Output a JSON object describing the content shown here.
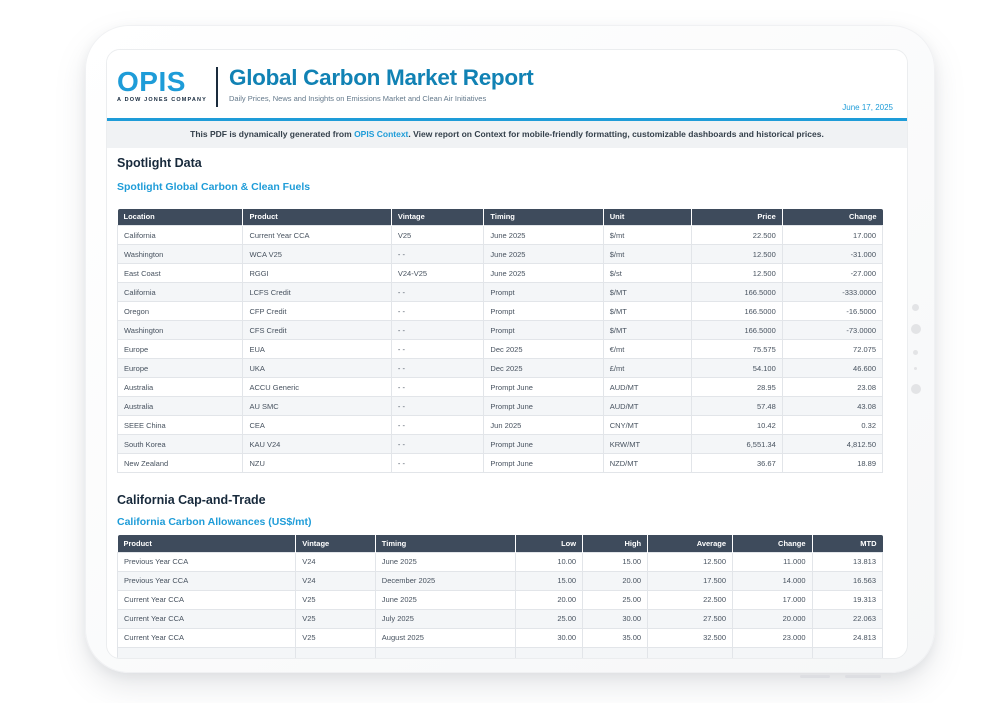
{
  "header": {
    "logo": {
      "name": "OPIS",
      "tagline": "A DOW JONES COMPANY"
    },
    "title": "Global Carbon Market Report",
    "subtitle": "Daily Prices, News and Insights on Emissions Market and Clean Air Initiatives",
    "date": "June 17, 2025"
  },
  "banner": {
    "text_before": "This PDF is dynamically generated from ",
    "link_text": "OPIS Context",
    "text_after": ". View report on Context for mobile-friendly formatting, customizable dashboards and historical prices."
  },
  "spotlight": {
    "heading": "Spotlight Data",
    "subheading": "Spotlight Global Carbon & Clean Fuels",
    "table": {
      "columns": [
        "Location",
        "Product",
        "Vintage",
        "Timing",
        "Unit",
        "Price",
        "Change"
      ],
      "align": [
        "left",
        "left",
        "left",
        "left",
        "left",
        "right",
        "right"
      ],
      "col_widths": [
        "16.4%",
        "19.4%",
        "12.1%",
        "15.6%",
        "11.6%",
        "11.8%",
        "13.1%"
      ],
      "rows": [
        [
          "California",
          "Current Year CCA",
          "V25",
          "June 2025",
          "$/mt",
          "22.500",
          "17.000"
        ],
        [
          "Washington",
          "WCA V25",
          "- -",
          "June 2025",
          "$/mt",
          "12.500",
          "-31.000"
        ],
        [
          "East Coast",
          "RGGI",
          "V24-V25",
          "June 2025",
          "$/st",
          "12.500",
          "-27.000"
        ],
        [
          "California",
          "LCFS Credit",
          "- -",
          "Prompt",
          "$/MT",
          "166.5000",
          "-333.0000"
        ],
        [
          "Oregon",
          "CFP Credit",
          "- -",
          "Prompt",
          "$/MT",
          "166.5000",
          "-16.5000"
        ],
        [
          "Washington",
          "CFS Credit",
          "- -",
          "Prompt",
          "$/MT",
          "166.5000",
          "-73.0000"
        ],
        [
          "Europe",
          "EUA",
          "- -",
          "Dec 2025",
          "€/mt",
          "75.575",
          "72.075"
        ],
        [
          "Europe",
          "UKA",
          "- -",
          "Dec 2025",
          "£/mt",
          "54.100",
          "46.600"
        ],
        [
          "Australia",
          "ACCU Generic",
          "- -",
          "Prompt June",
          "AUD/MT",
          "28.95",
          "23.08"
        ],
        [
          "Australia",
          "AU SMC",
          "- -",
          "Prompt June",
          "AUD/MT",
          "57.48",
          "43.08"
        ],
        [
          "SEEE China",
          "CEA",
          "- -",
          "Jun 2025",
          "CNY/MT",
          "10.42",
          "0.32"
        ],
        [
          "South Korea",
          "KAU V24",
          "- -",
          "Prompt June",
          "KRW/MT",
          "6,551.34",
          "4,812.50"
        ],
        [
          "New Zealand",
          "NZU",
          "- -",
          "Prompt June",
          "NZD/MT",
          "36.67",
          "18.89"
        ]
      ]
    }
  },
  "california": {
    "heading": "California Cap-and-Trade",
    "subheading": "California Carbon Allowances (US$/mt)",
    "table": {
      "columns": [
        "Product",
        "Vintage",
        "Timing",
        "Low",
        "High",
        "Average",
        "Change",
        "MTD"
      ],
      "align": [
        "left",
        "left",
        "left",
        "right",
        "right",
        "right",
        "right",
        "right"
      ],
      "col_widths": [
        "23.3%",
        "10.4%",
        "18.3%",
        "8.8%",
        "8.5%",
        "11.1%",
        "10.4%",
        "9.2%"
      ],
      "rows": [
        [
          "Previous Year CCA",
          "V24",
          "June 2025",
          "10.00",
          "15.00",
          "12.500",
          "11.000",
          "13.813"
        ],
        [
          "Previous Year CCA",
          "V24",
          "December 2025",
          "15.00",
          "20.00",
          "17.500",
          "14.000",
          "16.563"
        ],
        [
          "Current Year CCA",
          "V25",
          "June 2025",
          "20.00",
          "25.00",
          "22.500",
          "17.000",
          "19.313"
        ],
        [
          "Current Year CCA",
          "V25",
          "July 2025",
          "25.00",
          "30.00",
          "27.500",
          "20.000",
          "22.063"
        ],
        [
          "Current Year CCA",
          "V25",
          "August 2025",
          "30.00",
          "35.00",
          "32.500",
          "23.000",
          "24.813"
        ],
        [
          "",
          "",
          "",
          "",
          "",
          "",
          "",
          ""
        ]
      ]
    }
  },
  "colors": {
    "brand_blue": "#1e9cd8",
    "title_blue": "#1182b4",
    "navy": "#16293d",
    "table_header_bg": "#3e4b5c",
    "row_alt_bg": "#f4f6f8"
  }
}
